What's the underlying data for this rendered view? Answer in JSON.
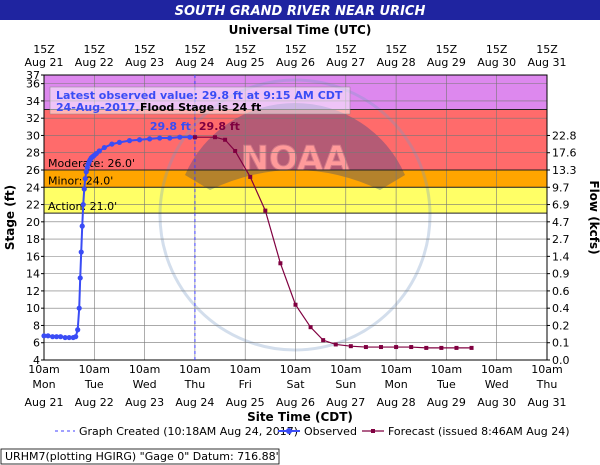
{
  "chart_data": {
    "type": "line",
    "title": "SOUTH GRAND RIVER NEAR URICH",
    "top_axis": {
      "label": "Universal Time (UTC)",
      "ticks": [
        {
          "line1": "15Z",
          "line2": "Aug 21"
        },
        {
          "line1": "15Z",
          "line2": "Aug 22"
        },
        {
          "line1": "15Z",
          "line2": "Aug 23"
        },
        {
          "line1": "15Z",
          "line2": "Aug 24"
        },
        {
          "line1": "15Z",
          "line2": "Aug 25"
        },
        {
          "line1": "15Z",
          "line2": "Aug 26"
        },
        {
          "line1": "15Z",
          "line2": "Aug 27"
        },
        {
          "line1": "15Z",
          "line2": "Aug 28"
        },
        {
          "line1": "15Z",
          "line2": "Aug 29"
        },
        {
          "line1": "15Z",
          "line2": "Aug 30"
        },
        {
          "line1": "15Z",
          "line2": "Aug 31"
        }
      ]
    },
    "bottom_axis": {
      "label": "Site Time (CDT)",
      "ticks": [
        {
          "line1": "10am",
          "line2": "Mon",
          "line3": "Aug 21"
        },
        {
          "line1": "10am",
          "line2": "Tue",
          "line3": "Aug 22"
        },
        {
          "line1": "10am",
          "line2": "Wed",
          "line3": "Aug 23"
        },
        {
          "line1": "10am",
          "line2": "Thu",
          "line3": "Aug 24"
        },
        {
          "line1": "10am",
          "line2": "Fri",
          "line3": "Aug 25"
        },
        {
          "line1": "10am",
          "line2": "Sat",
          "line3": "Aug 26"
        },
        {
          "line1": "10am",
          "line2": "Sun",
          "line3": "Aug 27"
        },
        {
          "line1": "10am",
          "line2": "Mon",
          "line3": "Aug 28"
        },
        {
          "line1": "10am",
          "line2": "Tue",
          "line3": "Aug 29"
        },
        {
          "line1": "10am",
          "line2": "Wed",
          "line3": "Aug 30"
        },
        {
          "line1": "10am",
          "line2": "Thu",
          "line3": "Aug 31"
        }
      ]
    },
    "ylabel": "Stage (ft)",
    "ylim": [
      4,
      37
    ],
    "yticks": [
      4,
      6,
      8,
      10,
      12,
      14,
      16,
      18,
      20,
      22,
      24,
      26,
      28,
      30,
      32,
      34,
      36,
      37
    ],
    "y2label": "Flow (kcfs)",
    "flow_ticks": [
      {
        "stage": 4,
        "label": "0.0"
      },
      {
        "stage": 6,
        "label": "0.1"
      },
      {
        "stage": 8,
        "label": "0.2"
      },
      {
        "stage": 10,
        "label": "0.4"
      },
      {
        "stage": 12,
        "label": "0.6"
      },
      {
        "stage": 14,
        "label": "0.9"
      },
      {
        "stage": 16,
        "label": "1.4"
      },
      {
        "stage": 18,
        "label": "2.7"
      },
      {
        "stage": 20,
        "label": "4.7"
      },
      {
        "stage": 22,
        "label": "6.9"
      },
      {
        "stage": 24,
        "label": "9.7"
      },
      {
        "stage": 26,
        "label": "13.3"
      },
      {
        "stage": 28,
        "label": "17.6"
      },
      {
        "stage": 30,
        "label": "22.8"
      }
    ],
    "bands": [
      {
        "name": "Action",
        "from": 21,
        "to": 24,
        "color": "#ffff66",
        "label": "Action: 21.0'"
      },
      {
        "name": "Minor",
        "from": 24,
        "to": 26,
        "color": "#ffa500",
        "label": "Minor: 24.0'"
      },
      {
        "name": "Moderate",
        "from": 26,
        "to": 33,
        "color": "#ff6b6b",
        "label": "Moderate: 26.0'"
      },
      {
        "name": "Major",
        "from": 33,
        "to": 37,
        "color": "#dd88ee",
        "label": ""
      }
    ],
    "annotation_line1": "Latest observed value: 29.8 ft at 9:15 AM CDT",
    "annotation_line2a": "24-Aug-2017.",
    "annotation_line2b": "Flood Stage is 24 ft",
    "observed_label": "29.8 ft",
    "forecast_label": "29.8 ft",
    "graph_created_day": 3,
    "series": [
      {
        "name": "Observed",
        "color": "#3a4cf5",
        "x": [
          0,
          0.08,
          0.17,
          0.25,
          0.33,
          0.42,
          0.5,
          0.58,
          0.63,
          0.67,
          0.7,
          0.72,
          0.74,
          0.76,
          0.78,
          0.8,
          0.82,
          0.84,
          0.86,
          0.88,
          0.9,
          0.92,
          0.94,
          0.96,
          0.98,
          1.0,
          1.04,
          1.1,
          1.2,
          1.35,
          1.5,
          1.7,
          1.9,
          2.1,
          2.3,
          2.5,
          2.7,
          2.9,
          3.0
        ],
        "y": [
          6.8,
          6.8,
          6.7,
          6.7,
          6.7,
          6.6,
          6.6,
          6.6,
          6.7,
          7.5,
          10,
          13.5,
          16.5,
          19.5,
          22,
          23.8,
          25,
          25.8,
          26.3,
          26.7,
          27.0,
          27.2,
          27.4,
          27.5,
          27.6,
          27.7,
          27.9,
          28.2,
          28.6,
          29.0,
          29.2,
          29.4,
          29.5,
          29.6,
          29.7,
          29.7,
          29.8,
          29.8,
          29.8
        ]
      },
      {
        "name": "Forecast (issued 8:46AM Aug 24)",
        "color": "#800040",
        "x": [
          3.0,
          3.4,
          3.6,
          3.8,
          4.1,
          4.4,
          4.7,
          5.0,
          5.3,
          5.55,
          5.8,
          6.1,
          6.4,
          6.7,
          7.0,
          7.3,
          7.6,
          7.9,
          8.2,
          8.5
        ],
        "y": [
          29.8,
          29.8,
          29.5,
          28.2,
          25.2,
          21.3,
          15.2,
          10.4,
          7.8,
          6.3,
          5.8,
          5.6,
          5.5,
          5.5,
          5.5,
          5.5,
          5.4,
          5.4,
          5.4,
          5.4
        ]
      }
    ],
    "legend": {
      "graph_created": "Graph Created (10:18AM Aug 24, 2017)",
      "observed": "Observed",
      "forecast": "Forecast (issued 8:46AM Aug 24)"
    },
    "footer": "URHM7(plotting HGIRG) \"Gage 0\" Datum:  716.88'"
  }
}
